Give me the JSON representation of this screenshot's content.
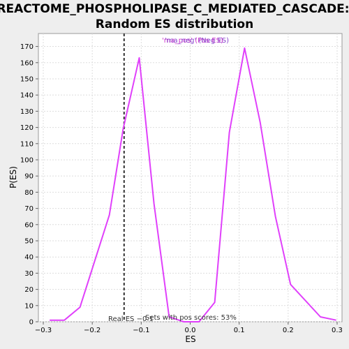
{
  "chart_data": {
    "type": "line",
    "title": "REACTOME_PHOSPHOLIPASE_C_MEDIATED_CASCADE:",
    "subtitle": "Random ES distribution",
    "xlabel": "ES",
    "ylabel": "P(ES)",
    "xlim": [
      -0.31,
      0.31
    ],
    "ylim": [
      0,
      178
    ],
    "xticks": [
      -0.3,
      -0.2,
      -0.1,
      0.0,
      0.1,
      0.2,
      0.3
    ],
    "xtick_labels": [
      "−0.3",
      "−0.2",
      "−0.1",
      "0.0",
      "0.1",
      "0.2",
      "0.3"
    ],
    "yticks": [
      0,
      10,
      20,
      30,
      40,
      50,
      60,
      70,
      80,
      90,
      100,
      110,
      120,
      130,
      140,
      150,
      160,
      170
    ],
    "grid": true,
    "series": [
      {
        "color": "#e040fb",
        "x": [
          -0.287,
          -0.257,
          -0.225,
          -0.165,
          -0.137,
          -0.104,
          -0.074,
          -0.043,
          -0.013,
          0.018,
          0.05,
          0.08,
          0.111,
          0.143,
          0.174,
          0.205,
          0.266,
          0.298
        ],
        "y": [
          1,
          1,
          9,
          66,
          119,
          163,
          73,
          3,
          0,
          0,
          12,
          117,
          169,
          123,
          65,
          23,
          3,
          1
        ]
      }
    ],
    "real_es": {
      "value": -0.135,
      "label": "Real ES −0.1",
      "color": "#333333"
    },
    "annotation": "Sets with pos scores: 53%",
    "legend": {
      "entries": [
        {
          "text": "'ma_pos' (Pos ES)",
          "color": "#cc33cc"
        },
        {
          "text": "'ma_neg' (Neg ES)",
          "color": "#8844cc"
        }
      ],
      "placement": "top-right"
    }
  }
}
